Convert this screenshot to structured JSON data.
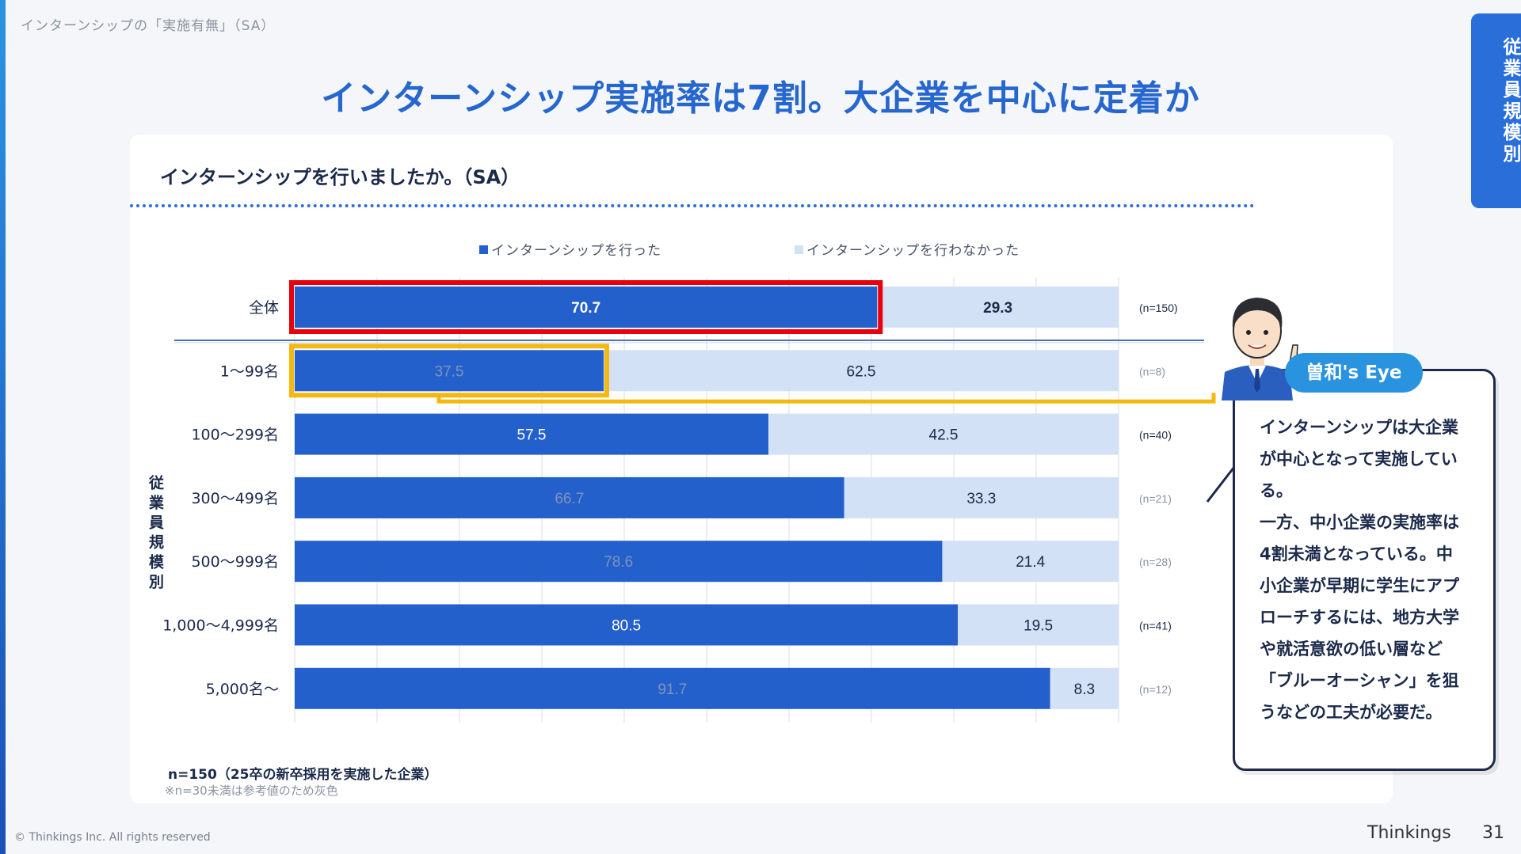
{
  "header": {
    "section_label": "インターンシップの「実施有無」（SA）",
    "title": "インターンシップ実施率は7割。大企業を中心に定着か",
    "side_tab": "従業員規模別"
  },
  "card": {
    "question": "インターンシップを行いましたか。（SA）",
    "y_group_label": "従業員規模別",
    "footnote_n": "n=150（25卒の新卒採用を実施した企業）",
    "footnote_note": "※n=30未満は参考値のため灰色"
  },
  "legend": {
    "did": "インターンシップを行った",
    "did_not": "インターンシップを行わなかった"
  },
  "commentary": {
    "badge": "曽和's Eye",
    "lines": [
      "インターンシップは大企業",
      "が中心となって実施してい",
      "る。",
      "一方、中小企業の実施率は",
      "4割未満となっている。中",
      "小企業が早期に学生にアプ",
      "ローチするには、地方大学",
      "や就活意欲の低い層など",
      "「ブルーオーシャン」を狙",
      "うなどの工夫が必要だ。"
    ]
  },
  "footer": {
    "copyright": "© Thinkings Inc. All rights reserved",
    "brand": "Thinkings",
    "page": "31"
  },
  "colors": {
    "did": "#2360cc",
    "did_not": "#d3e1f6",
    "highlight_total": "#e8000d",
    "highlight_small": "#f3b811",
    "title": "#2566cf"
  },
  "chart_data": {
    "type": "bar",
    "orientation": "horizontal",
    "stacked": true,
    "unit": "%",
    "xlim": [
      0,
      100
    ],
    "categories": [
      "全体",
      "1～99名",
      "100～299名",
      "300～499名",
      "500～999名",
      "1,000～4,999名",
      "5,000名～"
    ],
    "n_labels": [
      "(n=150)",
      "(n=8)",
      "(n=40)",
      "(n=21)",
      "(n=28)",
      "(n=41)",
      "(n=12)"
    ],
    "grayed_labels": [
      false,
      true,
      false,
      true,
      true,
      false,
      true
    ],
    "series": [
      {
        "name": "インターンシップを行った",
        "values": [
          70.7,
          37.5,
          57.5,
          66.7,
          78.6,
          80.5,
          91.7
        ]
      },
      {
        "name": "インターンシップを行わなかった",
        "values": [
          29.3,
          62.5,
          42.5,
          33.3,
          21.4,
          19.5,
          8.3
        ]
      }
    ],
    "grid": true,
    "legend_position": "top"
  }
}
